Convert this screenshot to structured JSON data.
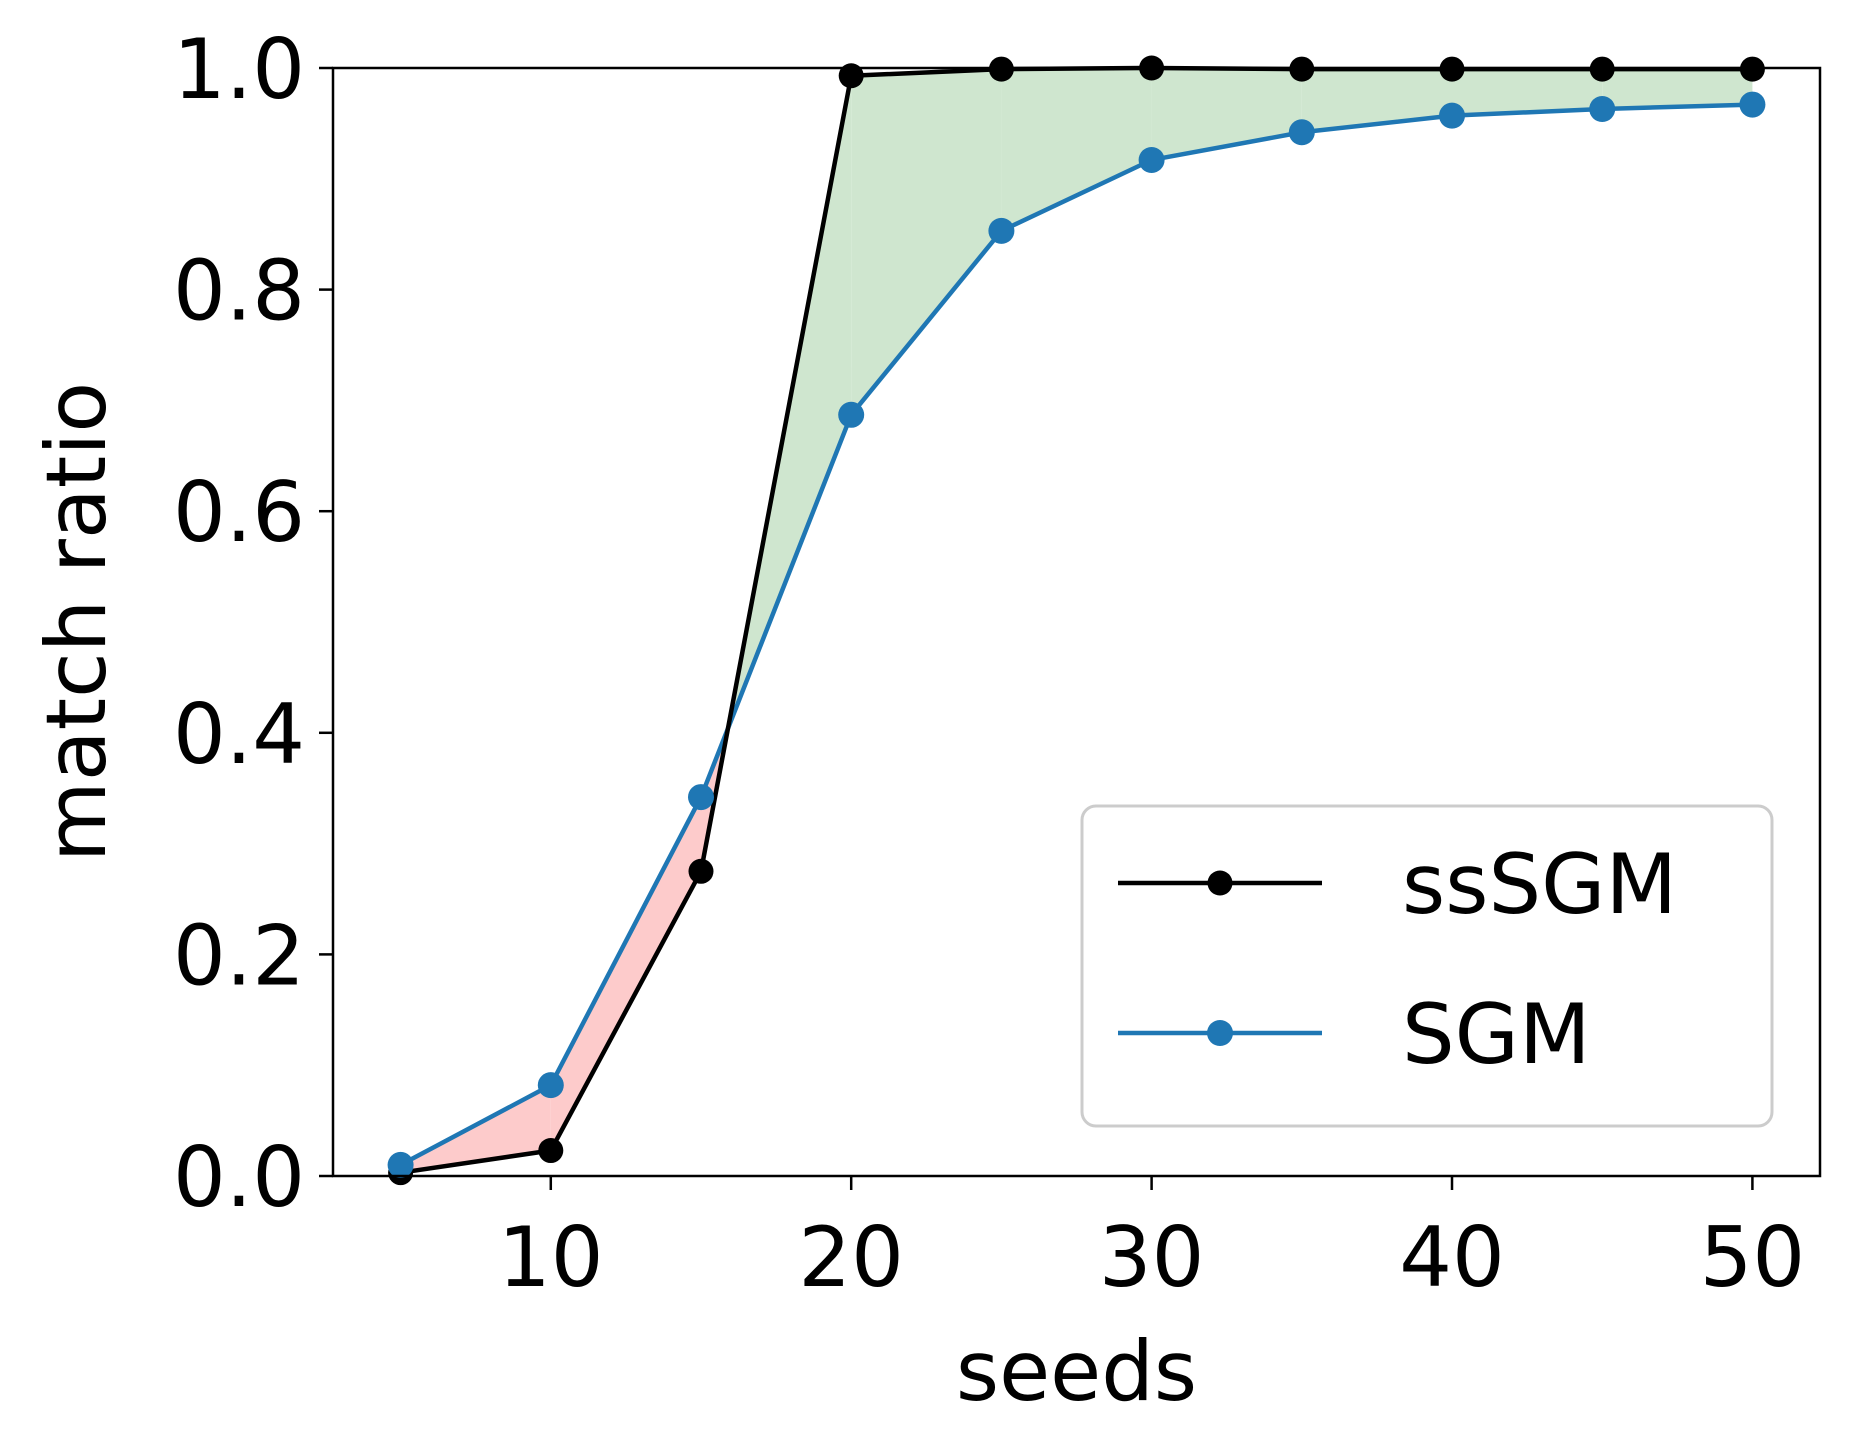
{
  "chart_data": {
    "type": "line",
    "title": "",
    "xlabel": "seeds",
    "ylabel": "match ratio",
    "x": [
      5,
      10,
      15,
      20,
      25,
      30,
      35,
      40,
      45,
      50
    ],
    "xlim": [
      2.75,
      52.25
    ],
    "ylim": [
      0.0,
      1.0
    ],
    "xticks": [
      10,
      20,
      30,
      40,
      50
    ],
    "xtick_labels": [
      "10",
      "20",
      "30",
      "40",
      "50"
    ],
    "yticks": [
      0.0,
      0.2,
      0.4,
      0.6,
      0.8,
      1.0
    ],
    "ytick_labels": [
      "0.0",
      "0.2",
      "0.4",
      "0.6",
      "0.8",
      "1.0"
    ],
    "grid": false,
    "legend_position": "lower-right",
    "series": [
      {
        "name": "ssSGM",
        "color": "#000000",
        "values": [
          0.003,
          0.023,
          0.275,
          0.993,
          0.999,
          1.0,
          0.999,
          0.999,
          0.999,
          0.999
        ]
      },
      {
        "name": "SGM",
        "color": "#1f77b4",
        "values": [
          0.01,
          0.082,
          0.342,
          0.687,
          0.853,
          0.917,
          0.942,
          0.957,
          0.963,
          0.967
        ]
      }
    ],
    "fill_between": {
      "above_color": "#cfe6cf",
      "below_color": "#fdcbcb"
    }
  }
}
